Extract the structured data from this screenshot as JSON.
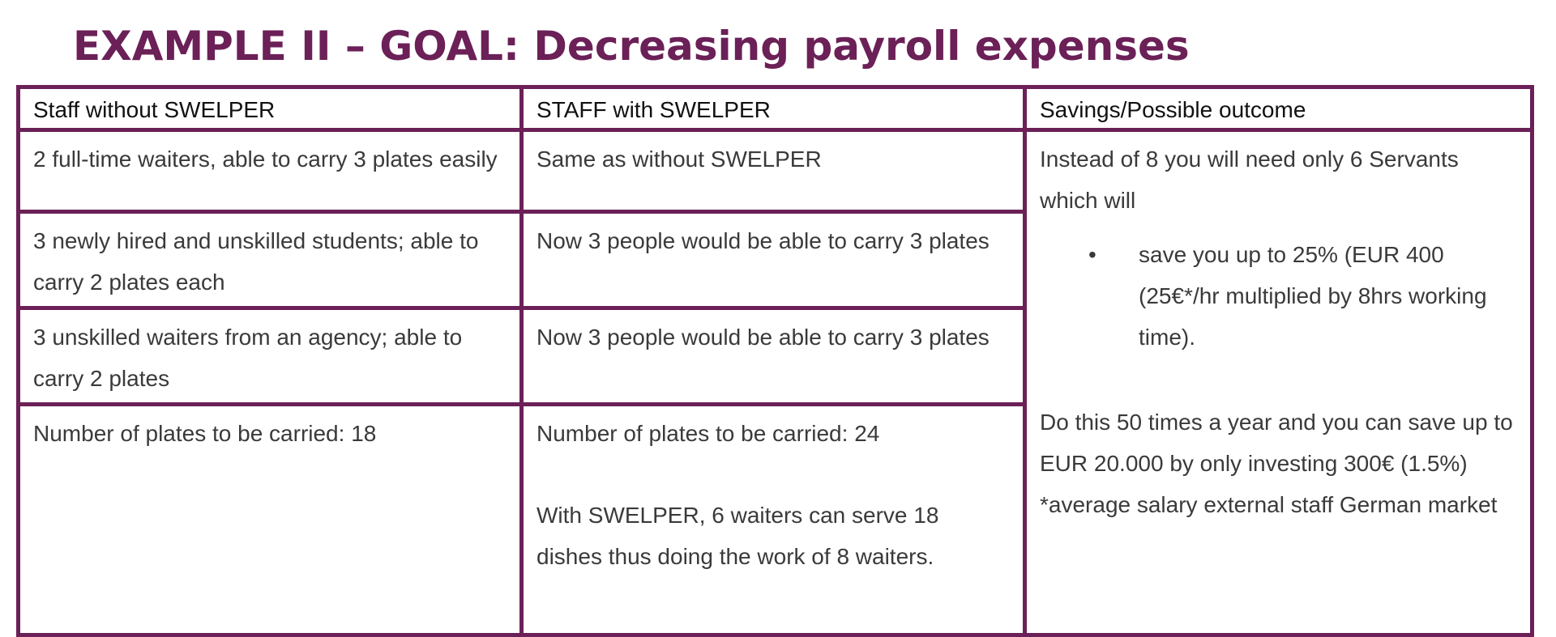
{
  "page": {
    "title": "EXAMPLE II – GOAL: Decreasing payroll expenses"
  },
  "table": {
    "headers": [
      "Staff without SWELPER",
      "STAFF with SWELPER",
      "Savings/Possible outcome"
    ],
    "rows": [
      {
        "without": "2 full-time waiters, able to carry 3 plates easily",
        "with": "Same as without SWELPER"
      },
      {
        "without": "3 newly hired and unskilled students; able to carry 2 plates each",
        "with": "Now 3 people would be able to carry 3 plates"
      },
      {
        "without": "3 unskilled waiters from an agency; able to carry 2 plates",
        "with": "Now 3 people would be able to carry 3 plates"
      },
      {
        "without": "Number of plates to be carried: 18",
        "with": "Number of plates to be carried: 24",
        "with_note": "With SWELPER, 6 waiters can serve 18 dishes thus doing the work of 8 waiters."
      }
    ],
    "savings": {
      "intro": "Instead of 8 you will need only 6 Servants which will",
      "bullet": "save you up to 25% (EUR 400 (25€*/hr multiplied by 8hrs working time).",
      "summary": "Do this 50 times a year and you can save up to EUR 20.000 by only investing 300€ (1.5%)",
      "footnote": "*average salary external staff German market"
    }
  },
  "colors": {
    "accent": "#6b2057",
    "text": "#3a3a3a"
  }
}
